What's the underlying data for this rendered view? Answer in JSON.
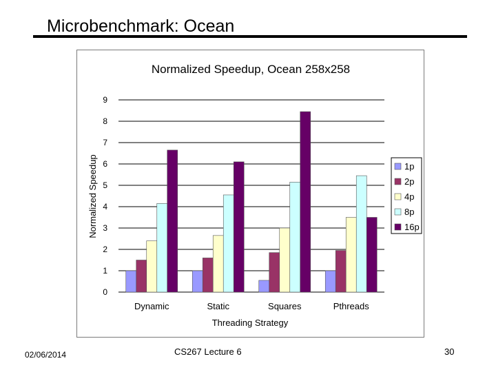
{
  "slide": {
    "title": "Microbenchmark: Ocean",
    "footer_date": "02/06/2014",
    "footer_center": "CS267 Lecture 6",
    "page_number": "30"
  },
  "chart_data": {
    "type": "bar",
    "title": "Normalized Speedup, Ocean 258x258",
    "xlabel": "Threading Strategy",
    "ylabel": "Normalized Speedup",
    "ylim": [
      0,
      9
    ],
    "yticks": [
      0,
      1,
      2,
      3,
      4,
      5,
      6,
      7,
      8,
      9
    ],
    "grid": true,
    "legend_position": "right",
    "categories": [
      "Dynamic",
      "Static",
      "Squares",
      "Pthreads"
    ],
    "series": [
      {
        "name": "1p",
        "color": "#9999ff",
        "values": [
          1.0,
          1.0,
          0.55,
          1.0
        ]
      },
      {
        "name": "2p",
        "color": "#993366",
        "values": [
          1.5,
          1.6,
          1.85,
          1.95
        ]
      },
      {
        "name": "4p",
        "color": "#ffffcc",
        "values": [
          2.4,
          2.65,
          3.0,
          3.5
        ]
      },
      {
        "name": "8p",
        "color": "#ccffff",
        "values": [
          4.15,
          4.55,
          5.15,
          5.45
        ]
      },
      {
        "name": "16p",
        "color": "#660066",
        "values": [
          6.65,
          6.1,
          8.45,
          3.5
        ]
      }
    ]
  }
}
